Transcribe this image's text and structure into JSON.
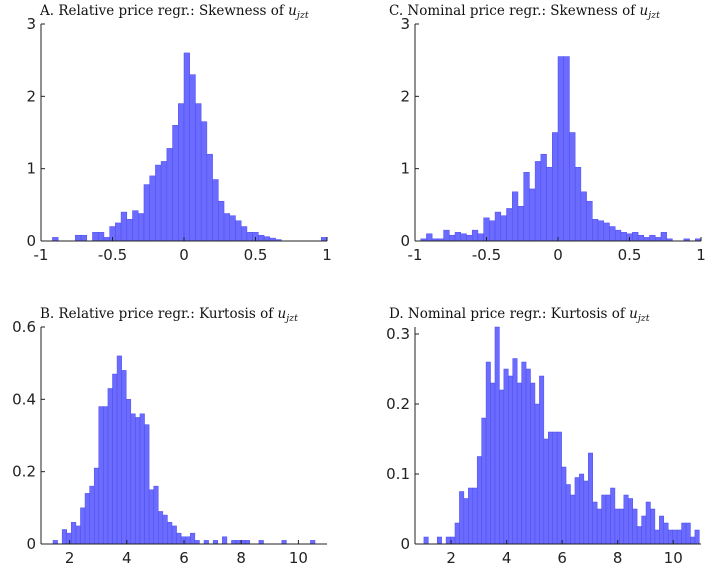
{
  "bar_color": "#6b6bff",
  "bar_edge_color": "#4d4df0",
  "axis_color": "#222222",
  "chart_data": [
    {
      "id": "A",
      "type": "bar",
      "title": "A. Relative price regr.: Skewness of ",
      "title_math": "u",
      "title_sub": "jzt",
      "xlim": [
        -1,
        1
      ],
      "ylim": [
        0,
        3
      ],
      "xticks": [
        -1,
        -0.5,
        0,
        0.5,
        1
      ],
      "xtick_labels": [
        "-1",
        "-0.5",
        "0",
        "0.5",
        "1"
      ],
      "yticks": [
        0,
        1,
        2,
        3
      ],
      "ytick_labels": [
        "0",
        "1",
        "2",
        "3"
      ],
      "bin_width": 0.04,
      "bins": [
        [
          -0.9,
          0.05
        ],
        [
          -0.86,
          0.0
        ],
        [
          -0.82,
          0.0
        ],
        [
          -0.78,
          0.0
        ],
        [
          -0.74,
          0.08
        ],
        [
          -0.7,
          0.08
        ],
        [
          -0.66,
          0.0
        ],
        [
          -0.62,
          0.12
        ],
        [
          -0.58,
          0.12
        ],
        [
          -0.54,
          0.05
        ],
        [
          -0.5,
          0.2
        ],
        [
          -0.46,
          0.25
        ],
        [
          -0.42,
          0.4
        ],
        [
          -0.38,
          0.3
        ],
        [
          -0.34,
          0.42
        ],
        [
          -0.3,
          0.38
        ],
        [
          -0.26,
          0.78
        ],
        [
          -0.22,
          0.9
        ],
        [
          -0.18,
          1.05
        ],
        [
          -0.14,
          1.1
        ],
        [
          -0.1,
          1.28
        ],
        [
          -0.06,
          1.6
        ],
        [
          -0.02,
          1.9
        ],
        [
          0.02,
          2.6
        ],
        [
          0.06,
          2.3
        ],
        [
          0.1,
          1.9
        ],
        [
          0.14,
          1.65
        ],
        [
          0.18,
          1.2
        ],
        [
          0.22,
          0.85
        ],
        [
          0.26,
          0.55
        ],
        [
          0.3,
          0.38
        ],
        [
          0.34,
          0.35
        ],
        [
          0.38,
          0.28
        ],
        [
          0.42,
          0.2
        ],
        [
          0.46,
          0.12
        ],
        [
          0.5,
          0.12
        ],
        [
          0.54,
          0.08
        ],
        [
          0.58,
          0.06
        ],
        [
          0.62,
          0.04
        ],
        [
          0.66,
          0.02
        ],
        [
          0.7,
          0.0
        ],
        [
          0.74,
          0.0
        ],
        [
          0.78,
          0.0
        ],
        [
          0.82,
          0.0
        ],
        [
          0.86,
          0.0
        ],
        [
          0.9,
          0.0
        ],
        [
          0.98,
          0.05
        ]
      ]
    },
    {
      "id": "C",
      "type": "bar",
      "title": "C. Nominal price regr.: Skewness of ",
      "title_math": "u",
      "title_sub": "jzt",
      "xlim": [
        -1,
        1
      ],
      "ylim": [
        0,
        3
      ],
      "xticks": [
        -1,
        -0.5,
        0,
        0.5,
        1
      ],
      "xtick_labels": [
        "-1",
        "-0.5",
        "0",
        "0.5",
        "1"
      ],
      "yticks": [
        0,
        1,
        2,
        3
      ],
      "ytick_labels": [
        "0",
        "1",
        "2",
        "3"
      ],
      "bin_width": 0.04,
      "bins": [
        [
          -0.94,
          0.03
        ],
        [
          -0.9,
          0.1
        ],
        [
          -0.86,
          0.03
        ],
        [
          -0.82,
          0.03
        ],
        [
          -0.78,
          0.15
        ],
        [
          -0.74,
          0.08
        ],
        [
          -0.7,
          0.12
        ],
        [
          -0.66,
          0.1
        ],
        [
          -0.62,
          0.08
        ],
        [
          -0.58,
          0.15
        ],
        [
          -0.54,
          0.1
        ],
        [
          -0.5,
          0.32
        ],
        [
          -0.46,
          0.28
        ],
        [
          -0.42,
          0.4
        ],
        [
          -0.38,
          0.35
        ],
        [
          -0.34,
          0.45
        ],
        [
          -0.3,
          0.68
        ],
        [
          -0.26,
          0.48
        ],
        [
          -0.22,
          0.95
        ],
        [
          -0.18,
          0.72
        ],
        [
          -0.14,
          1.1
        ],
        [
          -0.1,
          1.2
        ],
        [
          -0.06,
          1.02
        ],
        [
          -0.02,
          1.5
        ],
        [
          0.02,
          2.55
        ],
        [
          0.06,
          2.55
        ],
        [
          0.1,
          1.5
        ],
        [
          0.14,
          1.02
        ],
        [
          0.18,
          0.68
        ],
        [
          0.22,
          0.55
        ],
        [
          0.26,
          0.3
        ],
        [
          0.3,
          0.28
        ],
        [
          0.34,
          0.25
        ],
        [
          0.38,
          0.2
        ],
        [
          0.42,
          0.15
        ],
        [
          0.46,
          0.12
        ],
        [
          0.5,
          0.1
        ],
        [
          0.54,
          0.12
        ],
        [
          0.58,
          0.08
        ],
        [
          0.62,
          0.05
        ],
        [
          0.66,
          0.08
        ],
        [
          0.7,
          0.05
        ],
        [
          0.74,
          0.12
        ],
        [
          0.78,
          0.03
        ],
        [
          0.82,
          0.0
        ],
        [
          0.86,
          0.0
        ],
        [
          0.9,
          0.03
        ],
        [
          0.94,
          0.0
        ],
        [
          0.98,
          0.03
        ]
      ]
    },
    {
      "id": "B",
      "type": "bar",
      "title": "B. Relative price regr.: Kurtosis of ",
      "title_math": "u",
      "title_sub": "jzt",
      "xlim": [
        1,
        11
      ],
      "ylim": [
        0,
        0.6
      ],
      "xticks": [
        2,
        4,
        6,
        8,
        10
      ],
      "xtick_labels": [
        "2",
        "4",
        "6",
        "8",
        "10"
      ],
      "yticks": [
        0,
        0.2,
        0.4,
        0.6
      ],
      "ytick_labels": [
        "0",
        "0.2",
        "0.4",
        "0.6"
      ],
      "bin_width": 0.16,
      "bins": [
        [
          1.5,
          0.01
        ],
        [
          1.66,
          0.0
        ],
        [
          1.82,
          0.04
        ],
        [
          1.98,
          0.03
        ],
        [
          2.14,
          0.06
        ],
        [
          2.3,
          0.05
        ],
        [
          2.46,
          0.1
        ],
        [
          2.62,
          0.14
        ],
        [
          2.78,
          0.16
        ],
        [
          2.94,
          0.21
        ],
        [
          3.1,
          0.38
        ],
        [
          3.26,
          0.38
        ],
        [
          3.42,
          0.43
        ],
        [
          3.58,
          0.47
        ],
        [
          3.74,
          0.52
        ],
        [
          3.9,
          0.48
        ],
        [
          4.06,
          0.4
        ],
        [
          4.22,
          0.36
        ],
        [
          4.38,
          0.35
        ],
        [
          4.54,
          0.36
        ],
        [
          4.7,
          0.33
        ],
        [
          4.86,
          0.15
        ],
        [
          5.02,
          0.16
        ],
        [
          5.18,
          0.09
        ],
        [
          5.34,
          0.08
        ],
        [
          5.5,
          0.06
        ],
        [
          5.66,
          0.05
        ],
        [
          5.82,
          0.03
        ],
        [
          5.98,
          0.02
        ],
        [
          6.14,
          0.02
        ],
        [
          6.3,
          0.03
        ],
        [
          6.46,
          0.01
        ],
        [
          6.62,
          0.0
        ],
        [
          6.78,
          0.01
        ],
        [
          6.94,
          0.0
        ],
        [
          7.1,
          0.01
        ],
        [
          7.26,
          0.0
        ],
        [
          7.42,
          0.02
        ],
        [
          7.58,
          0.0
        ],
        [
          7.74,
          0.01
        ],
        [
          7.9,
          0.01
        ],
        [
          8.06,
          0.01
        ],
        [
          8.22,
          0.01
        ],
        [
          8.38,
          0.0
        ],
        [
          8.54,
          0.0
        ],
        [
          8.7,
          0.01
        ],
        [
          8.86,
          0.0
        ],
        [
          9.02,
          0.0
        ],
        [
          9.18,
          0.0
        ],
        [
          9.34,
          0.0
        ],
        [
          9.5,
          0.01
        ],
        [
          9.66,
          0.0
        ],
        [
          9.82,
          0.0
        ],
        [
          10.5,
          0.01
        ]
      ]
    },
    {
      "id": "D",
      "type": "bar",
      "title": "D. Nominal price regr.: Kurtosis of ",
      "title_math": "u",
      "title_sub": "jzt",
      "xlim": [
        0.7,
        11
      ],
      "ylim": [
        0,
        0.31
      ],
      "xticks": [
        2,
        4,
        6,
        8,
        10
      ],
      "xtick_labels": [
        "2",
        "4",
        "6",
        "8",
        "10"
      ],
      "yticks": [
        0,
        0.1,
        0.2,
        0.3
      ],
      "ytick_labels": [
        "0",
        "0.1",
        "0.2",
        "0.3"
      ],
      "bin_width": 0.16,
      "bins": [
        [
          1.1,
          0.01
        ],
        [
          1.26,
          0.0
        ],
        [
          1.42,
          0.0
        ],
        [
          1.58,
          0.01
        ],
        [
          1.74,
          0.0
        ],
        [
          1.9,
          0.01
        ],
        [
          2.06,
          0.01
        ],
        [
          2.22,
          0.03
        ],
        [
          2.38,
          0.075
        ],
        [
          2.54,
          0.065
        ],
        [
          2.7,
          0.08
        ],
        [
          2.86,
          0.08
        ],
        [
          3.02,
          0.125
        ],
        [
          3.18,
          0.18
        ],
        [
          3.34,
          0.26
        ],
        [
          3.5,
          0.23
        ],
        [
          3.66,
          0.31
        ],
        [
          3.82,
          0.22
        ],
        [
          3.98,
          0.25
        ],
        [
          4.14,
          0.24
        ],
        [
          4.3,
          0.265
        ],
        [
          4.46,
          0.23
        ],
        [
          4.62,
          0.26
        ],
        [
          4.78,
          0.25
        ],
        [
          4.94,
          0.23
        ],
        [
          5.1,
          0.2
        ],
        [
          5.26,
          0.24
        ],
        [
          5.42,
          0.15
        ],
        [
          5.58,
          0.16
        ],
        [
          5.74,
          0.16
        ],
        [
          5.9,
          0.16
        ],
        [
          6.06,
          0.11
        ],
        [
          6.22,
          0.085
        ],
        [
          6.38,
          0.07
        ],
        [
          6.54,
          0.095
        ],
        [
          6.7,
          0.1
        ],
        [
          6.86,
          0.09
        ],
        [
          7.02,
          0.13
        ],
        [
          7.18,
          0.06
        ],
        [
          7.34,
          0.05
        ],
        [
          7.5,
          0.07
        ],
        [
          7.66,
          0.07
        ],
        [
          7.82,
          0.08
        ],
        [
          7.98,
          0.05
        ],
        [
          8.14,
          0.05
        ],
        [
          8.3,
          0.07
        ],
        [
          8.46,
          0.065
        ],
        [
          8.62,
          0.05
        ],
        [
          8.78,
          0.025
        ],
        [
          8.94,
          0.04
        ],
        [
          9.1,
          0.06
        ],
        [
          9.26,
          0.05
        ],
        [
          9.42,
          0.02
        ],
        [
          9.58,
          0.04
        ],
        [
          9.74,
          0.03
        ],
        [
          9.9,
          0.02
        ],
        [
          10.06,
          0.02
        ],
        [
          10.22,
          0.02
        ],
        [
          10.38,
          0.03
        ],
        [
          10.54,
          0.03
        ],
        [
          10.7,
          0.01
        ],
        [
          10.86,
          0.02
        ]
      ]
    }
  ]
}
